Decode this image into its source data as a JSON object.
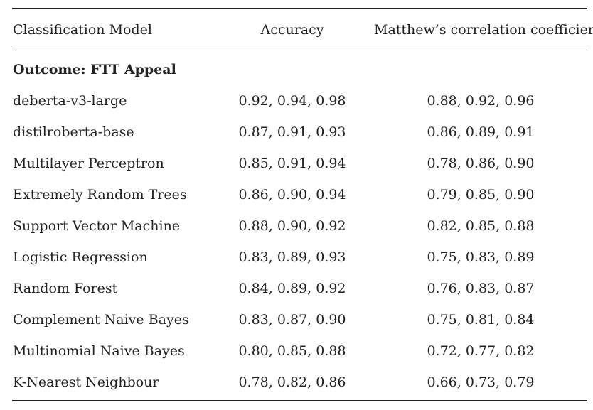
{
  "table": {
    "columns": {
      "model": "Classification Model",
      "accuracy": "Accuracy",
      "mcc": "Matthew’s correlation coefficient"
    },
    "group_label": "Outcome: FTT Appeal",
    "rows": [
      {
        "model": "deberta-v3-large",
        "accuracy": "0.92, 0.94, 0.98",
        "mcc": "0.88, 0.92, 0.96"
      },
      {
        "model": "distilroberta-base",
        "accuracy": "0.87, 0.91, 0.93",
        "mcc": "0.86, 0.89, 0.91"
      },
      {
        "model": "Multilayer Perceptron",
        "accuracy": "0.85, 0.91, 0.94",
        "mcc": "0.78, 0.86, 0.90"
      },
      {
        "model": "Extremely Random Trees",
        "accuracy": "0.86, 0.90, 0.94",
        "mcc": "0.79, 0.85, 0.90"
      },
      {
        "model": "Support Vector Machine",
        "accuracy": "0.88, 0.90, 0.92",
        "mcc": "0.82, 0.85, 0.88"
      },
      {
        "model": "Logistic Regression",
        "accuracy": "0.83, 0.89, 0.93",
        "mcc": "0.75, 0.83, 0.89"
      },
      {
        "model": "Random Forest",
        "accuracy": "0.84, 0.89, 0.92",
        "mcc": "0.76, 0.83, 0.87"
      },
      {
        "model": "Complement Naive Bayes",
        "accuracy": "0.83, 0.87, 0.90",
        "mcc": "0.75, 0.81, 0.84"
      },
      {
        "model": "Multinomial Naive Bayes",
        "accuracy": "0.80, 0.85, 0.88",
        "mcc": "0.72, 0.77, 0.82"
      },
      {
        "model": "K-Nearest Neighbour",
        "accuracy": "0.78, 0.82, 0.86",
        "mcc": "0.66, 0.73, 0.79"
      }
    ]
  }
}
